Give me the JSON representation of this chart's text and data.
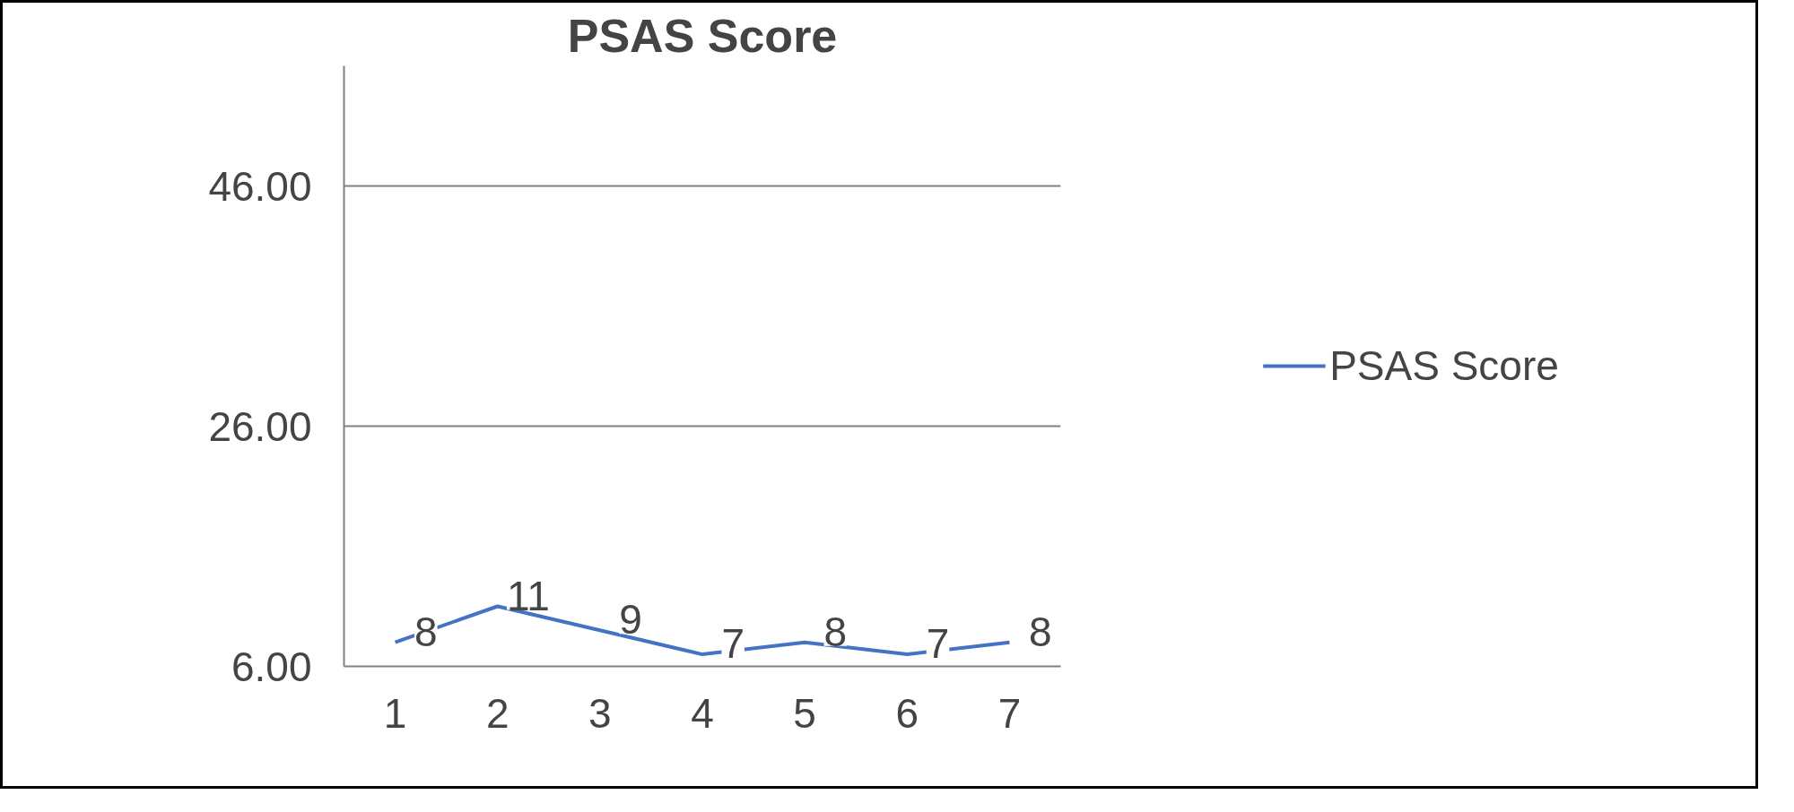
{
  "chart_data": {
    "type": "line",
    "title": "PSAS Score",
    "categories": [
      "1",
      "2",
      "3",
      "4",
      "5",
      "6",
      "7"
    ],
    "series": [
      {
        "name": "PSAS Score",
        "color": "#4472c4",
        "values": [
          8,
          11,
          9,
          7,
          8,
          7,
          8
        ]
      }
    ],
    "ylim": [
      6,
      56
    ],
    "yticks": [
      {
        "value": 6,
        "label": "6.00"
      },
      {
        "value": 26,
        "label": "26.00"
      },
      {
        "value": 46,
        "label": "46.00"
      }
    ],
    "grid": "y",
    "legend": "right",
    "data_labels": true,
    "marker": "none",
    "line_style": "solid"
  }
}
